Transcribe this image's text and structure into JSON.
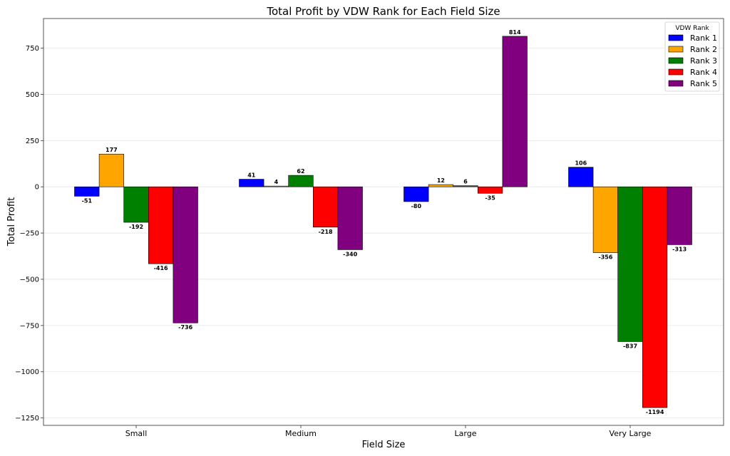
{
  "chart_data": {
    "type": "bar",
    "title": "Total Profit by VDW Rank for Each Field Size",
    "xlabel": "Field Size",
    "ylabel": "Total Profit",
    "categories": [
      "Small",
      "Medium",
      "Large",
      "Very Large"
    ],
    "ylim": [
      -1290,
      910
    ],
    "yticks": [
      750,
      500,
      250,
      0,
      -250,
      -500,
      -750,
      -1000,
      -1250
    ],
    "ytick_labels": [
      "750",
      "500",
      "250",
      "0",
      "−250",
      "−500",
      "−750",
      "−1000",
      "−1250"
    ],
    "grid": true,
    "legend": {
      "title": "VDW Rank",
      "placement": "top-right"
    },
    "series": [
      {
        "name": "Rank 1",
        "color": "#0000ff",
        "values": [
          -51,
          41,
          -80,
          106
        ]
      },
      {
        "name": "Rank 2",
        "color": "#ffa500",
        "values": [
          177,
          4,
          12,
          -356
        ]
      },
      {
        "name": "Rank 3",
        "color": "#008000",
        "values": [
          -192,
          62,
          6,
          -837
        ]
      },
      {
        "name": "Rank 4",
        "color": "#ff0000",
        "values": [
          -416,
          -218,
          -35,
          -1194
        ]
      },
      {
        "name": "Rank 5",
        "color": "#800080",
        "values": [
          -736,
          -340,
          814,
          -313
        ]
      }
    ]
  }
}
